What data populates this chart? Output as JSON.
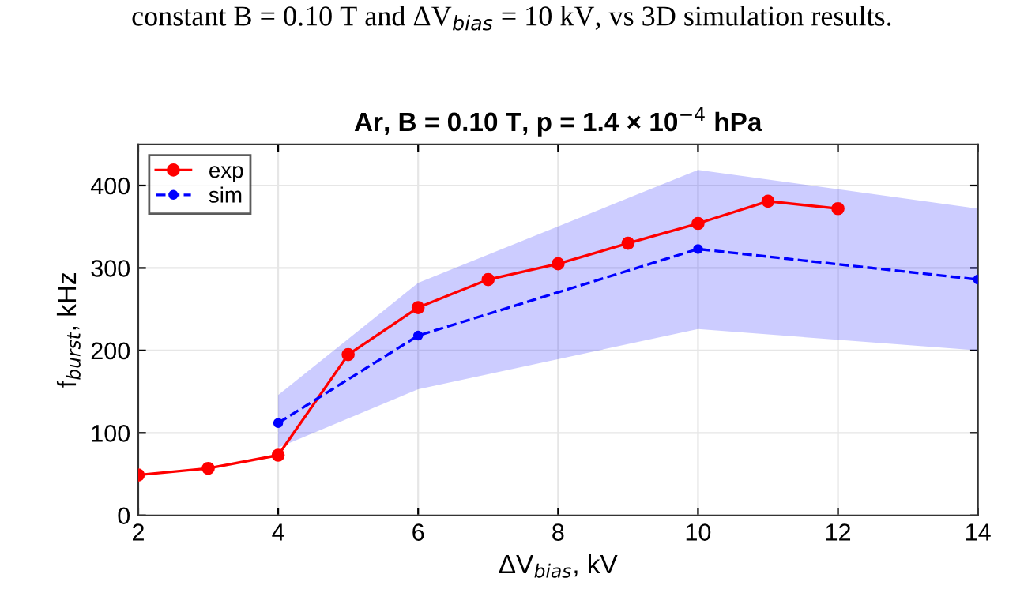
{
  "chart_data": {
    "type": "line",
    "title": "Ar, B = 0.10 T, p = 1.4 × 10$^{−4}$ hPa",
    "xlabel": "ΔV$_{bias}$, kV",
    "ylabel": "f$_{burst}$, kHz",
    "annotations": [
      "constant B = 0.10 T and ΔV$_{bias}$ = 10 kV, vs 3D simulation results."
    ],
    "xlim": [
      2,
      14
    ],
    "xticks": [
      2,
      4,
      6,
      8,
      10,
      12,
      14
    ],
    "ylim": [
      0,
      450
    ],
    "yticks": [
      0,
      100,
      200,
      300,
      400
    ],
    "grid": true,
    "legend": "top left",
    "series": [
      {
        "name": "exp",
        "color": "#ff0000",
        "marker": "circle",
        "line_style": "solid",
        "x": [
          2,
          3,
          4,
          5,
          6,
          7,
          8,
          9,
          10,
          11,
          12
        ],
        "values": [
          49,
          57,
          73,
          195,
          252,
          286,
          305,
          330,
          354,
          381,
          372
        ]
      },
      {
        "name": "sim",
        "color": "#0000ff",
        "marker": "circle",
        "line_style": "dashed",
        "x": [
          4,
          6,
          10,
          14
        ],
        "values": [
          112,
          218,
          323,
          286
        ],
        "lower": [
          82,
          153,
          226,
          200
        ],
        "upper": [
          146,
          282,
          419,
          372
        ]
      }
    ]
  }
}
